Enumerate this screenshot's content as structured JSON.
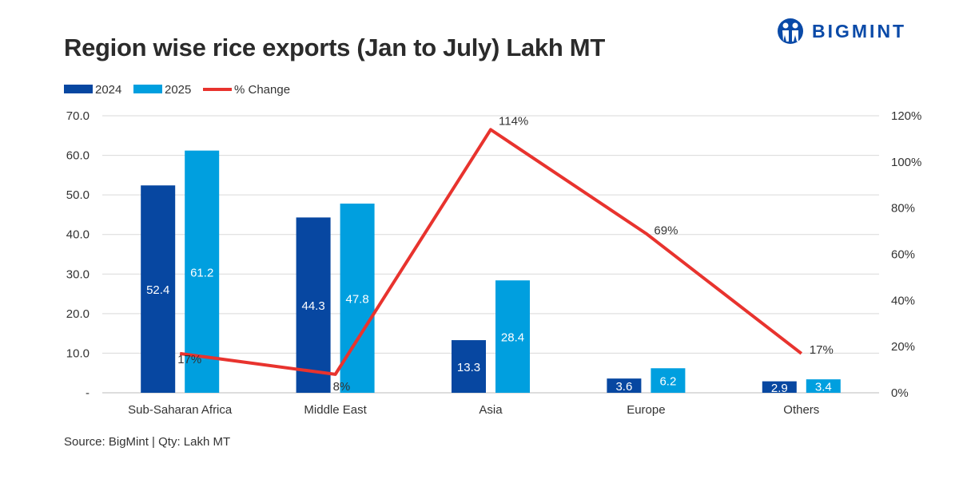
{
  "title": "Region wise rice exports (Jan to July) Lakh MT",
  "logo": {
    "text": "BIGMINT",
    "color": "#0a4aa8"
  },
  "source": "Source: BigMint | Qty: Lakh MT",
  "chart_data": {
    "type": "bar",
    "title": "Region wise rice exports (Jan to July) Lakh MT",
    "categories": [
      "Sub-Saharan Africa",
      "Middle East",
      "Asia",
      "Europe",
      "Others"
    ],
    "series": [
      {
        "name": "2024",
        "type": "bar",
        "axis": "left",
        "color": "#0747a1",
        "values": [
          52.4,
          44.3,
          13.3,
          3.6,
          2.9
        ],
        "labels": [
          "52.4",
          "44.3",
          "13.3",
          "3.6",
          "2.9"
        ]
      },
      {
        "name": "2025",
        "type": "bar",
        "axis": "left",
        "color": "#009fdf",
        "values": [
          61.2,
          47.8,
          28.4,
          6.2,
          3.4
        ],
        "labels": [
          "61.2",
          "47.8",
          "28.4",
          "6.2",
          "3.4"
        ]
      },
      {
        "name": "% Change",
        "type": "line",
        "axis": "right",
        "color": "#e8332e",
        "values": [
          17,
          8,
          114,
          69,
          17
        ],
        "labels": [
          "17%",
          "8%",
          "114%",
          "69%",
          "17%"
        ]
      }
    ],
    "y_left": {
      "range": [
        0,
        70
      ],
      "ticks": [
        "-",
        "10.0",
        "20.0",
        "30.0",
        "40.0",
        "50.0",
        "60.0",
        "70.0"
      ]
    },
    "y_right": {
      "range": [
        0,
        120
      ],
      "ticks": [
        "0%",
        "20%",
        "40%",
        "60%",
        "80%",
        "100%",
        "120%"
      ]
    },
    "grid": true,
    "legend": "top-left"
  }
}
